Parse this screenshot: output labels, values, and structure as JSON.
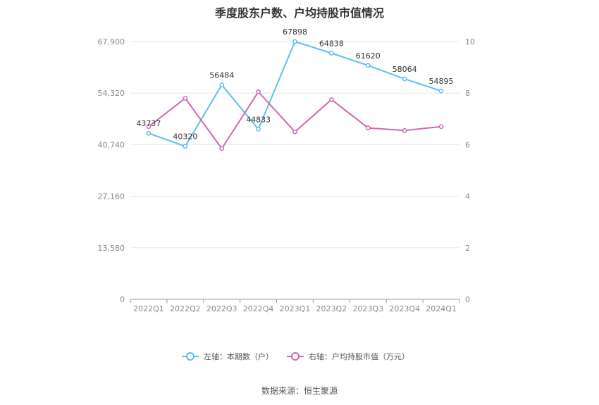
{
  "chart_data": {
    "type": "line",
    "title": "季度股东户数、户均持股市值情况",
    "categories": [
      "2022Q1",
      "2022Q2",
      "2022Q3",
      "2022Q4",
      "2023Q1",
      "2023Q2",
      "2023Q3",
      "2023Q4",
      "2024Q1"
    ],
    "series": [
      {
        "name": "左轴：本期数（户）",
        "axis": "left",
        "color": "#5bc0f0",
        "values": [
          43737,
          40320,
          56484,
          44833,
          67898,
          64838,
          61620,
          58064,
          54895
        ],
        "labels": [
          "43737",
          "40320",
          "56484",
          "44833",
          "67898",
          "64838",
          "61620",
          "58064",
          "54895"
        ]
      },
      {
        "name": "右轴：户均持股市值（万元）",
        "axis": "right",
        "color": "#d466b0",
        "values": [
          6.7,
          7.8,
          5.85,
          8.05,
          6.5,
          7.75,
          6.65,
          6.55,
          6.7
        ]
      }
    ],
    "y_left": {
      "lim": [
        0,
        67900
      ],
      "ticks": [
        "0",
        "13,580",
        "27,160",
        "40,740",
        "54,320",
        "67,900"
      ]
    },
    "y_right": {
      "lim": [
        0,
        10
      ],
      "ticks": [
        "0",
        "2",
        "4",
        "6",
        "8",
        "10"
      ]
    },
    "grid": true,
    "legend": "bottom-center"
  },
  "source": "数据来源：恒生聚源"
}
